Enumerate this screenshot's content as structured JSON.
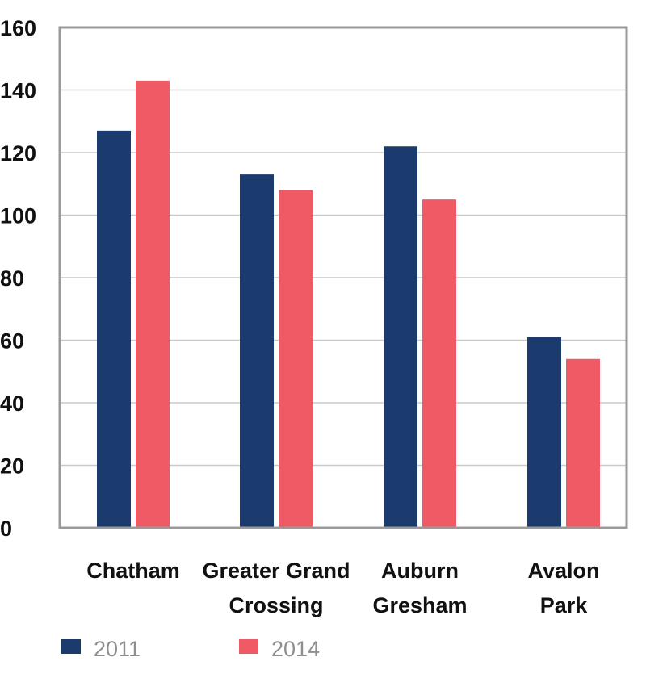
{
  "chart_data": {
    "type": "bar",
    "categories": [
      [
        "Chatham"
      ],
      [
        "Greater Grand",
        "Crossing"
      ],
      [
        "Auburn",
        "Gresham"
      ],
      [
        "Avalon",
        "Park"
      ]
    ],
    "series": [
      {
        "name": "2011",
        "color": "#1b3a6e",
        "values": [
          127,
          113,
          122,
          61
        ]
      },
      {
        "name": "2014",
        "color": "#f05a65",
        "values": [
          143,
          108,
          105,
          54
        ]
      }
    ],
    "yticks": [
      "0",
      "20",
      "40",
      "60",
      "80",
      "100",
      "120",
      "140",
      "160"
    ],
    "ylim": [
      0,
      160
    ],
    "grid": true,
    "legend": "bottom-left",
    "title": "",
    "xlabel": "",
    "ylabel": ""
  }
}
